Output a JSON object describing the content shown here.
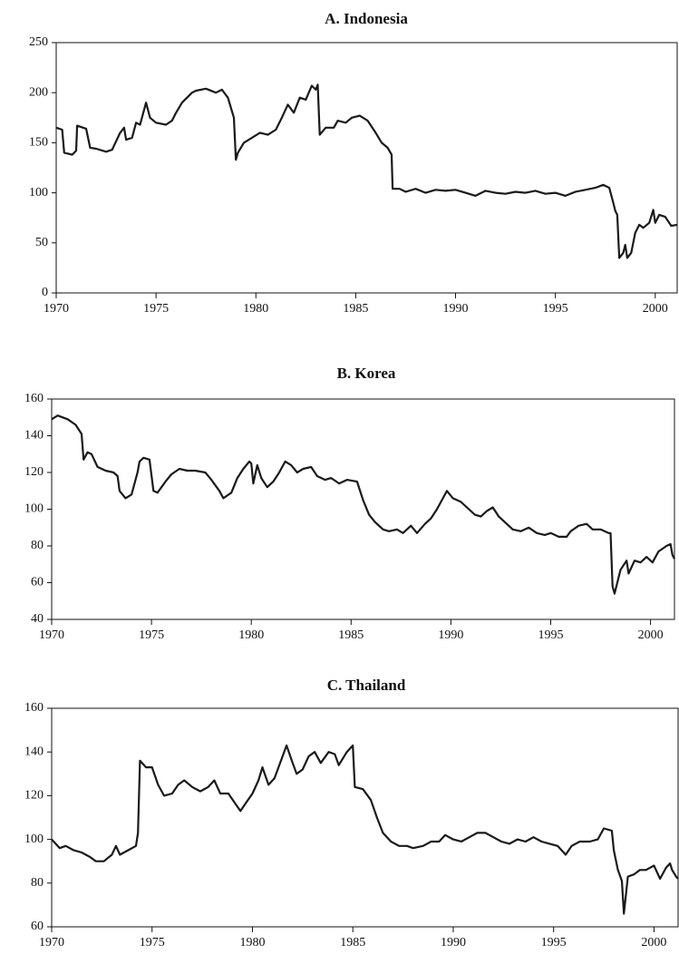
{
  "chart_data": [
    {
      "type": "line",
      "title": "A.  Indonesia",
      "color": "#1a1a1a",
      "xlim": [
        1970,
        2001.1
      ],
      "ylim": [
        0,
        250
      ],
      "xticks": [
        1970,
        1975,
        1980,
        1985,
        1990,
        1995,
        2000
      ],
      "yticks": [
        0,
        50,
        100,
        150,
        200,
        250
      ],
      "x": [
        1970.0,
        1970.3,
        1970.4,
        1970.8,
        1971.0,
        1971.05,
        1971.5,
        1971.7,
        1972.0,
        1972.5,
        1972.8,
        1973.2,
        1973.4,
        1973.5,
        1973.8,
        1974.0,
        1974.2,
        1974.5,
        1974.7,
        1975.0,
        1975.5,
        1975.8,
        1976.0,
        1976.3,
        1976.8,
        1977.0,
        1977.5,
        1978.0,
        1978.3,
        1978.6,
        1978.9,
        1979.0,
        1979.1,
        1979.4,
        1979.8,
        1980.2,
        1980.6,
        1981.0,
        1981.3,
        1981.6,
        1981.9,
        1982.2,
        1982.5,
        1982.8,
        1983.0,
        1983.1,
        1983.2,
        1983.5,
        1983.9,
        1984.1,
        1984.5,
        1984.8,
        1985.2,
        1985.6,
        1986.0,
        1986.3,
        1986.6,
        1986.8,
        1986.85,
        1987.2,
        1987.5,
        1988.0,
        1988.5,
        1989.0,
        1989.5,
        1990.0,
        1990.5,
        1991.0,
        1991.5,
        1992.0,
        1992.5,
        1993.0,
        1993.5,
        1994.0,
        1994.5,
        1995.0,
        1995.5,
        1996.0,
        1996.5,
        1997.0,
        1997.4,
        1997.7,
        1997.9,
        1998.0,
        1998.1,
        1998.2,
        1998.4,
        1998.5,
        1998.6,
        1998.8,
        1999.0,
        1999.2,
        1999.4,
        1999.7,
        1999.9,
        2000.0,
        2000.2,
        2000.5,
        2000.7,
        2000.8,
        2001.1
      ],
      "values": [
        165,
        163,
        140,
        138,
        142,
        167,
        164,
        145,
        144,
        141,
        143,
        160,
        165,
        153,
        155,
        170,
        168,
        190,
        175,
        170,
        168,
        172,
        180,
        190,
        200,
        202,
        204,
        200,
        203,
        195,
        175,
        133,
        140,
        150,
        155,
        160,
        158,
        163,
        175,
        188,
        180,
        195,
        193,
        207,
        203,
        208,
        158,
        165,
        165,
        172,
        170,
        175,
        177,
        172,
        160,
        150,
        145,
        138,
        104,
        104,
        101,
        104,
        100,
        103,
        102,
        103,
        100,
        97,
        102,
        100,
        99,
        101,
        100,
        102,
        99,
        100,
        97,
        101,
        103,
        105,
        108,
        105,
        90,
        82,
        78,
        35,
        40,
        48,
        35,
        40,
        60,
        68,
        65,
        70,
        83,
        70,
        78,
        76,
        70,
        67,
        68
      ]
    },
    {
      "type": "line",
      "title": "B.  Korea",
      "color": "#1a1a1a",
      "xlim": [
        1970,
        2001.2
      ],
      "ylim": [
        40,
        160
      ],
      "xticks": [
        1970,
        1975,
        1980,
        1985,
        1990,
        1995,
        2000
      ],
      "yticks": [
        40,
        60,
        80,
        100,
        120,
        140,
        160
      ],
      "x": [
        1970.0,
        1970.3,
        1970.8,
        1971.2,
        1971.5,
        1971.6,
        1971.8,
        1972.0,
        1972.3,
        1972.7,
        1973.1,
        1973.3,
        1973.4,
        1973.7,
        1974.0,
        1974.3,
        1974.4,
        1974.6,
        1974.9,
        1975.1,
        1975.3,
        1975.7,
        1976.0,
        1976.4,
        1976.8,
        1977.2,
        1977.7,
        1978.0,
        1978.4,
        1978.6,
        1979.0,
        1979.3,
        1979.6,
        1979.9,
        1980.0,
        1980.1,
        1980.3,
        1980.5,
        1980.8,
        1981.1,
        1981.4,
        1981.7,
        1982.0,
        1982.3,
        1982.6,
        1983.0,
        1983.3,
        1983.7,
        1984.0,
        1984.4,
        1984.8,
        1985.3,
        1985.6,
        1985.9,
        1986.2,
        1986.6,
        1986.9,
        1987.3,
        1987.6,
        1988.0,
        1988.3,
        1988.7,
        1989.0,
        1989.3,
        1989.6,
        1989.8,
        1990.1,
        1990.5,
        1990.9,
        1991.2,
        1991.5,
        1991.8,
        1992.1,
        1992.4,
        1992.8,
        1993.1,
        1993.5,
        1993.9,
        1994.3,
        1994.7,
        1995.0,
        1995.4,
        1995.8,
        1996.0,
        1996.4,
        1996.8,
        1997.1,
        1997.5,
        1997.9,
        1998.0,
        1998.1,
        1998.2,
        1998.5,
        1998.8,
        1998.9,
        1999.2,
        1999.5,
        1999.8,
        2000.1,
        2000.4,
        2000.8,
        2001.0,
        2001.1,
        2001.2
      ],
      "values": [
        149,
        151,
        149,
        146,
        141,
        127,
        131,
        130,
        123,
        121,
        120,
        118,
        110,
        106,
        108,
        120,
        126,
        128,
        127,
        110,
        109,
        115,
        119,
        122,
        121,
        121,
        120,
        116,
        110,
        106,
        109,
        117,
        122,
        126,
        125,
        114,
        124,
        117,
        112,
        115,
        120,
        126,
        124,
        120,
        122,
        123,
        118,
        116,
        117,
        114,
        116,
        115,
        105,
        97,
        93,
        89,
        88,
        89,
        87,
        91,
        87,
        92,
        95,
        100,
        106,
        110,
        106,
        104,
        100,
        97,
        96,
        99,
        101,
        96,
        92,
        89,
        88,
        90,
        87,
        86,
        87,
        85,
        85,
        88,
        91,
        92,
        89,
        89,
        87,
        87,
        58,
        54,
        67,
        72,
        65,
        72,
        71,
        74,
        71,
        77,
        80,
        81,
        75,
        73
      ]
    },
    {
      "type": "line",
      "title": "C.  Thailand",
      "color": "#1a1a1a",
      "xlim": [
        1970,
        2001.2
      ],
      "ylim": [
        60,
        160
      ],
      "xticks": [
        1970,
        1975,
        1980,
        1985,
        1990,
        1995,
        2000
      ],
      "yticks": [
        60,
        80,
        100,
        120,
        140,
        160
      ],
      "x": [
        1970.0,
        1970.4,
        1970.7,
        1971.1,
        1971.5,
        1971.9,
        1972.2,
        1972.6,
        1973.0,
        1973.2,
        1973.4,
        1973.8,
        1974.2,
        1974.3,
        1974.4,
        1974.7,
        1975.0,
        1975.3,
        1975.6,
        1976.0,
        1976.3,
        1976.6,
        1977.0,
        1977.4,
        1977.8,
        1978.1,
        1978.4,
        1978.8,
        1979.1,
        1979.4,
        1979.7,
        1980.0,
        1980.3,
        1980.5,
        1980.8,
        1981.1,
        1981.5,
        1981.7,
        1982.0,
        1982.2,
        1982.5,
        1982.8,
        1983.1,
        1983.4,
        1983.8,
        1984.1,
        1984.3,
        1984.7,
        1985.0,
        1985.1,
        1985.5,
        1985.9,
        1986.2,
        1986.5,
        1986.9,
        1987.3,
        1987.7,
        1988.0,
        1988.5,
        1988.9,
        1989.3,
        1989.6,
        1990.0,
        1990.4,
        1990.8,
        1991.2,
        1991.6,
        1992.0,
        1992.4,
        1992.8,
        1993.2,
        1993.6,
        1994.0,
        1994.4,
        1994.8,
        1995.2,
        1995.6,
        1995.9,
        1996.3,
        1996.8,
        1997.2,
        1997.5,
        1997.9,
        1998.0,
        1998.2,
        1998.4,
        1998.5,
        1998.7,
        1999.0,
        1999.3,
        1999.6,
        2000.0,
        2000.3,
        2000.6,
        2000.8,
        2000.9,
        2001.1,
        2001.2
      ],
      "values": [
        100,
        96,
        97,
        95,
        94,
        92,
        90,
        90,
        93,
        97,
        93,
        95,
        97,
        103,
        136,
        133,
        133,
        125,
        120,
        121,
        125,
        127,
        124,
        122,
        124,
        127,
        121,
        121,
        117,
        113,
        117,
        121,
        127,
        133,
        125,
        128,
        138,
        143,
        135,
        130,
        132,
        138,
        140,
        135,
        140,
        139,
        134,
        140,
        143,
        124,
        123,
        118,
        110,
        103,
        99,
        97,
        97,
        96,
        97,
        99,
        99,
        102,
        100,
        99,
        101,
        103,
        103,
        101,
        99,
        98,
        100,
        99,
        101,
        99,
        98,
        97,
        93,
        97,
        99,
        99,
        100,
        105,
        104,
        95,
        86,
        81,
        66,
        83,
        84,
        86,
        86,
        88,
        82,
        87,
        89,
        86,
        83,
        82
      ]
    }
  ]
}
